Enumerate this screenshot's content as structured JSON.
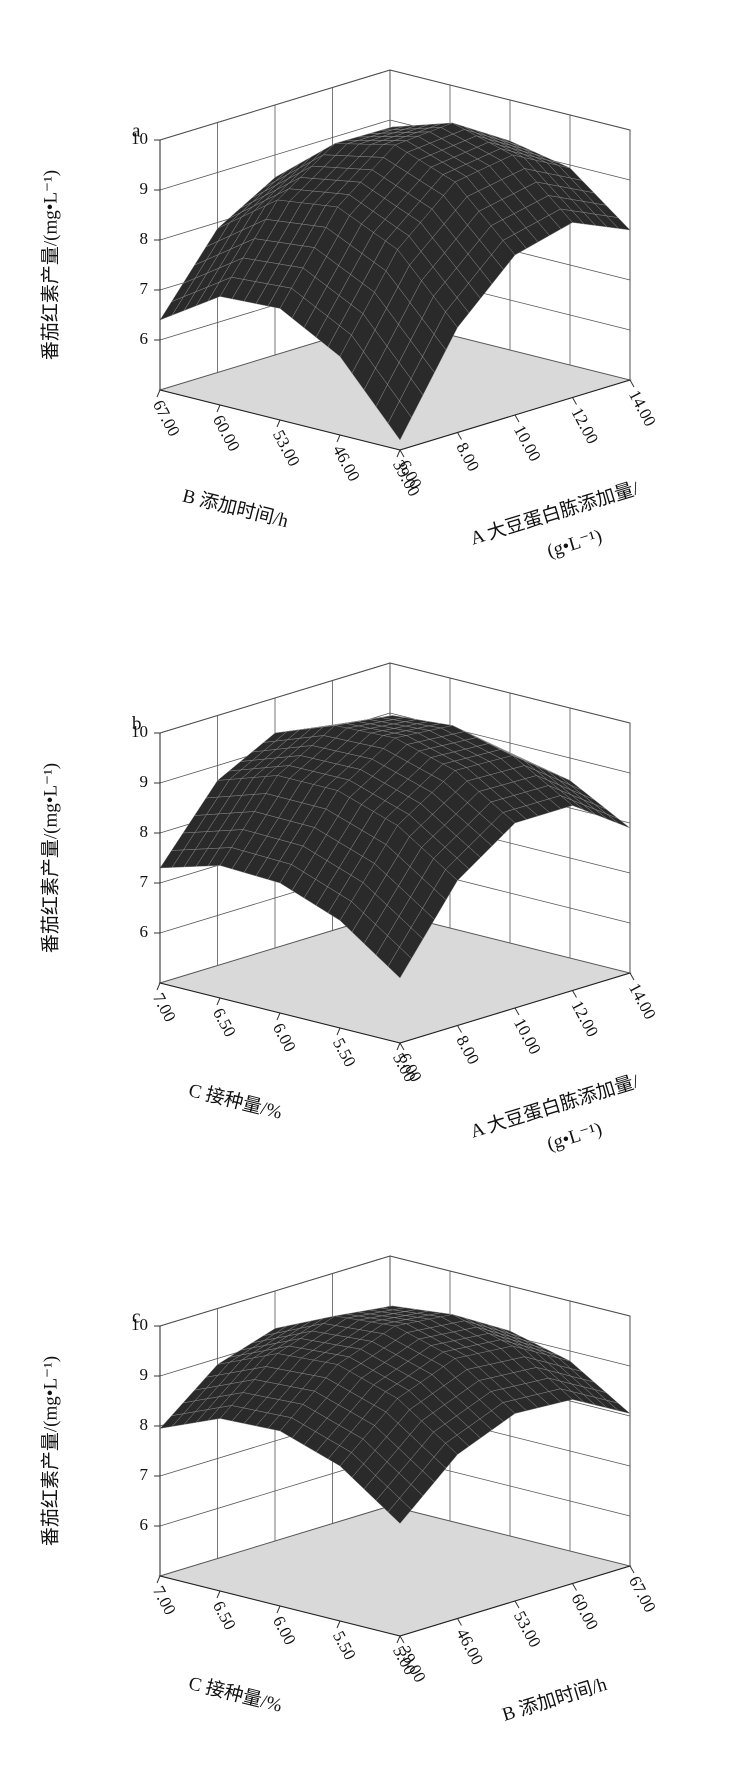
{
  "chart_data": [
    {
      "type": "surface3d",
      "panel_label": "a",
      "zlabel": "番茄红素产量/(mg•L⁻¹)",
      "xlabel": "A 大豆蛋白胨添加量/",
      "xlabel_unit": "(g•L⁻¹)",
      "ylabel": "B 添加时间/h",
      "x": [
        6,
        8,
        10,
        12,
        14
      ],
      "xlim": [
        6,
        14
      ],
      "xticks": [
        {
          "value": 6,
          "label": "6.00"
        },
        {
          "value": 8,
          "label": "8.00"
        },
        {
          "value": 10,
          "label": "10.00"
        },
        {
          "value": 12,
          "label": "12.00"
        },
        {
          "value": 14,
          "label": "14.00"
        }
      ],
      "y": [
        39,
        46,
        53,
        60,
        67
      ],
      "ylim": [
        39,
        67
      ],
      "yticks": [
        {
          "value": 39,
          "label": "39.00"
        },
        {
          "value": 46,
          "label": "46.00"
        },
        {
          "value": 53,
          "label": "53.00"
        },
        {
          "value": 60,
          "label": "60.00"
        },
        {
          "value": 67,
          "label": "67.00"
        }
      ],
      "zlim": [
        5,
        10
      ],
      "zticks": [
        6,
        7,
        8,
        9,
        10
      ],
      "z": [
        [
          5.2,
          7.1,
          8.2,
          8.5,
          8.0
        ],
        [
          6.57,
          8.36,
          9.36,
          9.55,
          8.94
        ],
        [
          7.23,
          8.91,
          9.8,
          9.89,
          9.18
        ],
        [
          7.17,
          8.75,
          9.53,
          9.51,
          8.69
        ],
        [
          6.4,
          7.88,
          8.55,
          8.43,
          7.5
        ]
      ],
      "surface_color": "#2a2a2a",
      "floor_color": "#d9d9d9"
    },
    {
      "type": "surface3d",
      "panel_label": "b",
      "zlabel": "番茄红素产量/(mg•L⁻¹)",
      "xlabel": "A 大豆蛋白胨添加量/",
      "xlabel_unit": "(g•L⁻¹)",
      "ylabel": "C 接种量/%",
      "x": [
        6,
        8,
        10,
        12,
        14
      ],
      "xlim": [
        6,
        14
      ],
      "xticks": [
        {
          "value": 6,
          "label": "6.00"
        },
        {
          "value": 8,
          "label": "8.00"
        },
        {
          "value": 10,
          "label": "10.00"
        },
        {
          "value": 12,
          "label": "12.00"
        },
        {
          "value": 14,
          "label": "14.00"
        }
      ],
      "y": [
        5,
        5.5,
        6,
        6.5,
        7
      ],
      "ylim": [
        5,
        7
      ],
      "yticks": [
        {
          "value": 5,
          "label": "5.00"
        },
        {
          "value": 5.5,
          "label": "5.50"
        },
        {
          "value": 6,
          "label": "6.00"
        },
        {
          "value": 6.5,
          "label": "6.50"
        },
        {
          "value": 7,
          "label": "7.00"
        }
      ],
      "zlim": [
        5,
        10
      ],
      "zticks": [
        6,
        7,
        8,
        9,
        10
      ],
      "z": [
        [
          6.3,
          7.9,
          8.7,
          8.7,
          7.9
        ],
        [
          7.15,
          8.7,
          9.45,
          9.4,
          8.55
        ],
        [
          7.6,
          9.1,
          9.8,
          9.7,
          8.8
        ],
        [
          7.65,
          9.1,
          9.75,
          9.6,
          8.65
        ],
        [
          7.3,
          8.7,
          9.3,
          9.1,
          8.1
        ]
      ],
      "surface_color": "#2a2a2a",
      "floor_color": "#d9d9d9"
    },
    {
      "type": "surface3d",
      "panel_label": "c",
      "zlabel": "番茄红素产量/(mg•L⁻¹)",
      "xlabel": "B 添加时间/h",
      "ylabel": "C 接种量/%",
      "x": [
        39,
        46,
        53,
        60,
        67
      ],
      "xlim": [
        39,
        67
      ],
      "xticks": [
        {
          "value": 39,
          "label": "39.00"
        },
        {
          "value": 46,
          "label": "46.00"
        },
        {
          "value": 53,
          "label": "53.00"
        },
        {
          "value": 60,
          "label": "60.00"
        },
        {
          "value": 67,
          "label": "67.00"
        }
      ],
      "y": [
        5,
        5.5,
        6,
        6.5,
        7
      ],
      "ylim": [
        5,
        7
      ],
      "yticks": [
        {
          "value": 5,
          "label": "5.00"
        },
        {
          "value": 5.5,
          "label": "5.50"
        },
        {
          "value": 6,
          "label": "6.00"
        },
        {
          "value": 6.5,
          "label": "6.50"
        },
        {
          "value": 7,
          "label": "7.00"
        }
      ],
      "zlim": [
        5,
        10
      ],
      "zticks": [
        6,
        7,
        8,
        9,
        10
      ],
      "z": [
        [
          7.25,
          8.28,
          8.75,
          8.68,
          8.05
        ],
        [
          8.1,
          9.1,
          9.55,
          9.45,
          8.8
        ],
        [
          8.5,
          9.48,
          9.9,
          9.78,
          9.1
        ],
        [
          8.45,
          9.4,
          9.8,
          9.65,
          8.95
        ],
        [
          7.95,
          8.88,
          9.25,
          9.08,
          8.35
        ]
      ],
      "surface_color": "#2a2a2a",
      "floor_color": "#d9d9d9"
    }
  ]
}
